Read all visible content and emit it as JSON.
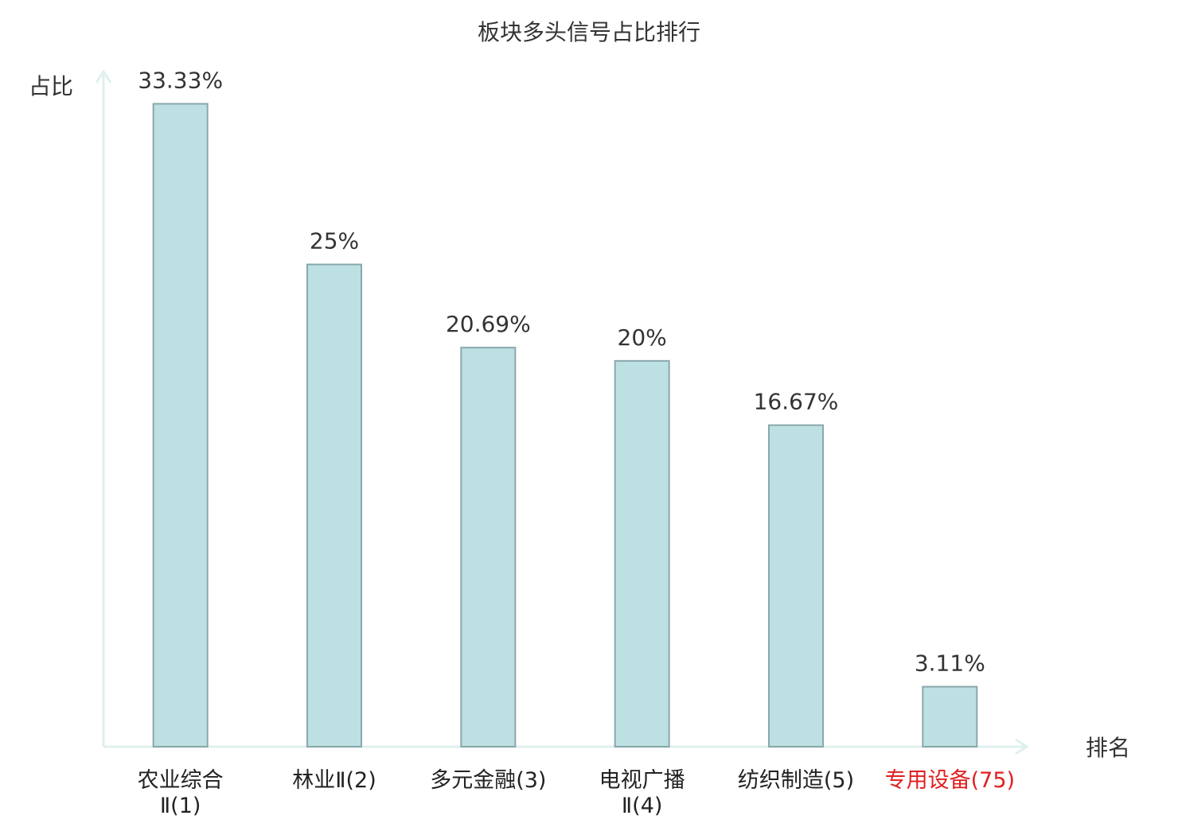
{
  "chart_data": {
    "type": "bar",
    "title": "板块多头信号占比排行",
    "y_label": "占比",
    "x_label": "排名",
    "categories": [
      "农业综合\nⅡ(1)",
      "林业Ⅱ(2)",
      "多元金融(3)",
      "电视广播\nⅡ(4)",
      "纺织制造(5)",
      "专用设备(75)"
    ],
    "category_label_colors": [
      "#222222",
      "#222222",
      "#222222",
      "#222222",
      "#222222",
      "#e02020"
    ],
    "values": [
      33.33,
      25,
      20.69,
      20,
      16.67,
      3.11
    ],
    "value_labels": [
      "33.33%",
      "25%",
      "20.69%",
      "20%",
      "16.67%",
      "3.11%"
    ],
    "color": "#bde0e3",
    "edge_color": "#8aa8aa",
    "axis_color": "#dff0ee",
    "ylim": [
      0,
      35
    ]
  }
}
